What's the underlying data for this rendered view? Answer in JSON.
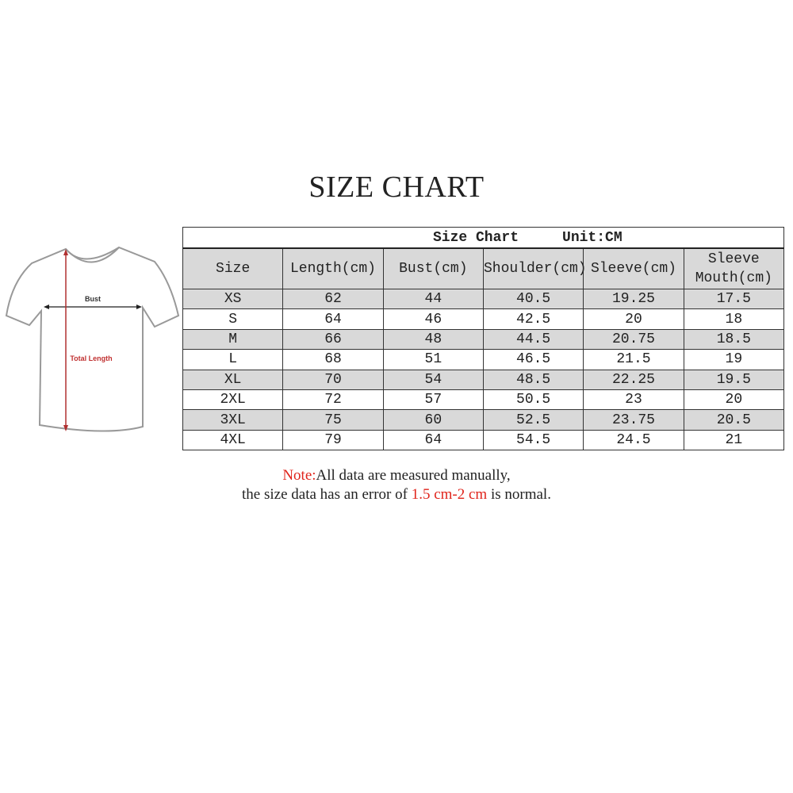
{
  "title": "SIZE CHART",
  "diagram": {
    "bust_label": "Bust",
    "length_label": "Total Length"
  },
  "table": {
    "caption": "Size Chart",
    "unit": "Unit:CM",
    "headers": [
      "Size",
      "Length(cm)",
      "Bust(cm)",
      "Shoulder(cm)",
      "Sleeve(cm)",
      "Sleeve\nMouth(cm)"
    ],
    "rows": [
      [
        "XS",
        "62",
        "44",
        "40.5",
        "19.25",
        "17.5"
      ],
      [
        "S",
        "64",
        "46",
        "42.5",
        "20",
        "18"
      ],
      [
        "M",
        "66",
        "48",
        "44.5",
        "20.75",
        "18.5"
      ],
      [
        "L",
        "68",
        "51",
        "46.5",
        "21.5",
        "19"
      ],
      [
        "XL",
        "70",
        "54",
        "48.5",
        "22.25",
        "19.5"
      ],
      [
        "2XL",
        "72",
        "57",
        "50.5",
        "23",
        "20"
      ],
      [
        "3XL",
        "75",
        "60",
        "52.5",
        "23.75",
        "20.5"
      ],
      [
        "4XL",
        "79",
        "64",
        "54.5",
        "24.5",
        "21"
      ]
    ]
  },
  "note": {
    "label": "Note:",
    "line1": "All data are measured manually,",
    "line2_pre": "the size data has an error of ",
    "line2_range": "1.5 cm-2 cm",
    "line2_post": " is normal."
  },
  "colors": {
    "accent_red": "#e0241b",
    "header_gray": "#d9d9d9"
  }
}
